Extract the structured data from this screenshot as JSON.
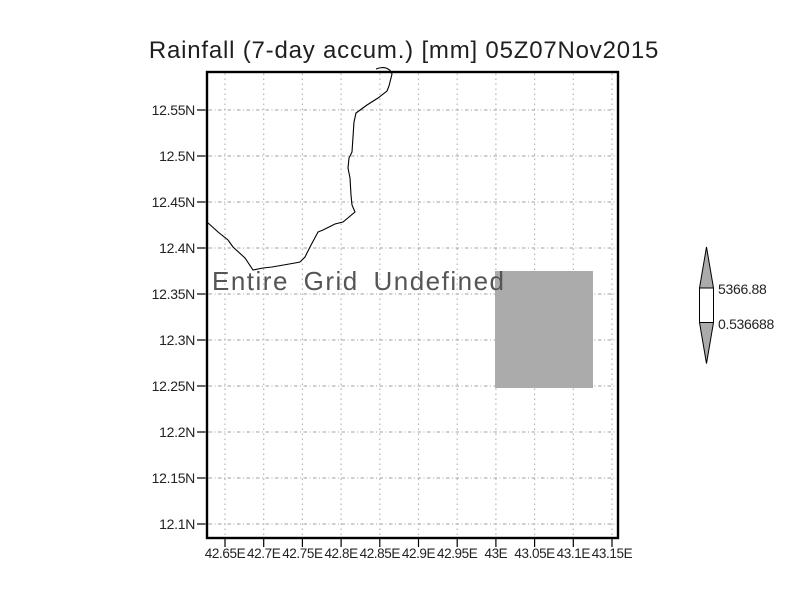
{
  "title": "Rainfall (7-day accum.) [mm] 05Z07Nov2015",
  "map": {
    "undefined_message": "Entire Grid Undefined"
  },
  "axes": {
    "y_labels": [
      "12.55N",
      "12.5N",
      "12.45N",
      "12.4N",
      "12.35N",
      "12.3N",
      "12.25N",
      "12.2N",
      "12.15N",
      "12.1N"
    ],
    "x_labels": [
      "42.65E",
      "42.7E",
      "42.75E",
      "42.8E",
      "42.85E",
      "42.9E",
      "42.95E",
      "43E",
      "43.05E",
      "43.1E",
      "43.15E"
    ]
  },
  "colorbar": {
    "max_label": "5366.88",
    "min_label": "0.536688",
    "arrow_fill": "#ababab",
    "box_fill": "#ffffff"
  },
  "colors": {
    "shaded_cell": "#ababab",
    "gridline": "#b5b5b5",
    "border": "#000000",
    "coastline": "#000000"
  },
  "chart_data": {
    "type": "heatmap",
    "title": "Rainfall (7-day accum.) [mm] 05Z07Nov2015",
    "variable": "Rainfall (7-day accum.)",
    "units": "mm",
    "valid_time": "05Z07Nov2015",
    "x_tick_labels": [
      "42.65E",
      "42.7E",
      "42.75E",
      "42.8E",
      "42.85E",
      "42.9E",
      "42.95E",
      "43E",
      "43.05E",
      "43.1E",
      "43.15E"
    ],
    "y_tick_labels": [
      "12.55N",
      "12.5N",
      "12.45N",
      "12.4N",
      "12.35N",
      "12.3N",
      "12.25N",
      "12.2N",
      "12.15N",
      "12.1N"
    ],
    "status": "Entire Grid Undefined",
    "colorbar_min": 0.536688,
    "colorbar_max": 5366.88,
    "legend_position": "right",
    "grid": true,
    "coastline_shown": true,
    "shaded_region": {
      "x_range": [
        "43E",
        "43.13E"
      ],
      "y_range": [
        "12.25N",
        "12.375N"
      ],
      "color": "#ababab"
    }
  }
}
